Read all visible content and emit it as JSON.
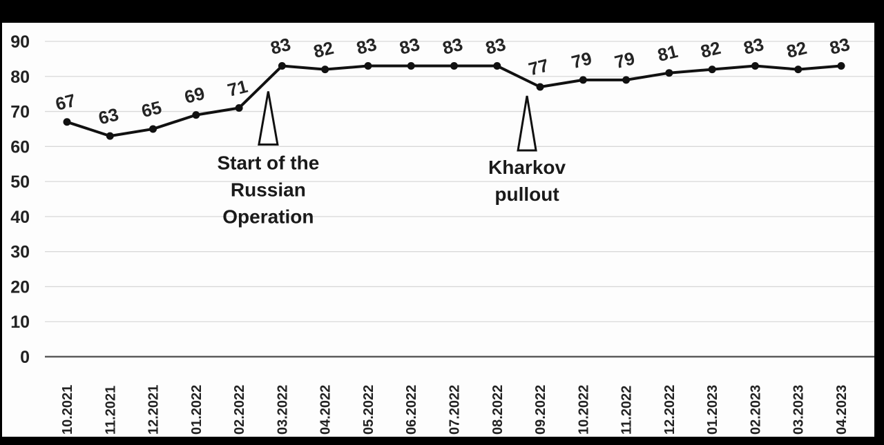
{
  "chart_data": {
    "type": "line",
    "categories": [
      "10.2021",
      "11.2021",
      "12.2021",
      "01.2022",
      "02.2022",
      "03.2022",
      "04.2022",
      "05.2022",
      "06.2022",
      "07.2022",
      "08.2022",
      "09.2022",
      "10.2022",
      "11.2022",
      "12.2022",
      "01.2023",
      "02.2023",
      "03.2023",
      "04.2023"
    ],
    "values": [
      67,
      63,
      65,
      69,
      71,
      83,
      82,
      83,
      83,
      83,
      83,
      77,
      79,
      79,
      81,
      82,
      83,
      82,
      83
    ],
    "title": "",
    "xlabel": "",
    "ylabel": "",
    "ylim": [
      0,
      90
    ],
    "yticks": [
      0,
      10,
      20,
      30,
      40,
      50,
      60,
      70,
      80,
      90
    ],
    "grid": true,
    "legend": "none",
    "data_labels": true,
    "x_tick_rotation_deg": 90,
    "annotations": [
      {
        "lines": [
          "Start of the",
          "Russian",
          "Operation"
        ],
        "category": "03.2022",
        "marker": "up-arrow"
      },
      {
        "lines": [
          "Kharkov",
          "pullout"
        ],
        "category": "09.2022",
        "marker": "up-arrow"
      }
    ],
    "colors": {
      "line": "#111111",
      "grid": "#d8d8d8",
      "axis": "#5a5a5a",
      "background": "#fdfdfd",
      "frame": "#000000"
    }
  }
}
